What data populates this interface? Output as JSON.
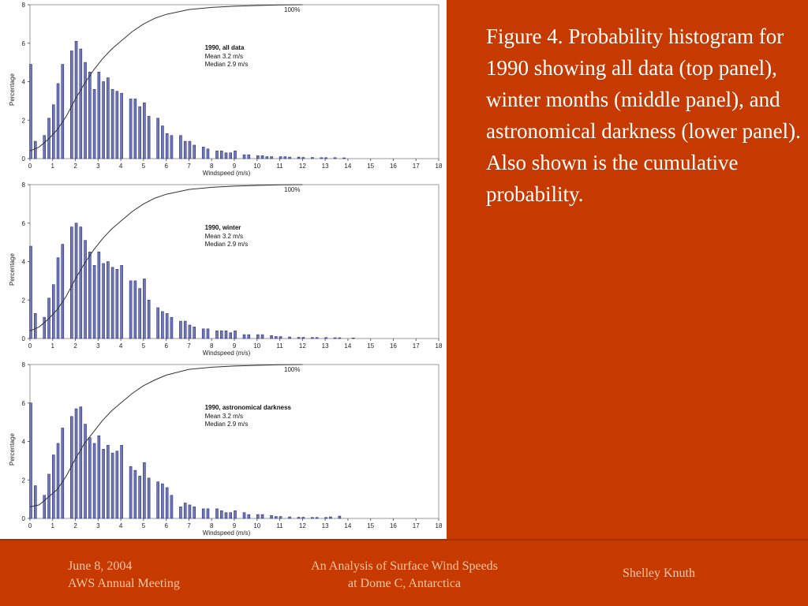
{
  "colors": {
    "background": "#c63a00",
    "bar_fill": "#6f78b8",
    "bar_stroke": "#2d2f7a",
    "line": "#333333",
    "text": "#ffffff",
    "footer_text": "#f6c7a8"
  },
  "caption": "Figure 4. Probability histogram for 1990 showing all data (top panel), winter months (middle panel), and astronomical darkness (lower panel). Also shown is the cumulative probability.",
  "footer": {
    "date": "June 8, 2004",
    "meeting": "AWS Annual Meeting",
    "title_line1": "An Analysis of Surface Wind Speeds",
    "title_line2": "at Dome C, Antarctica",
    "author": "Shelley Knuth"
  },
  "chart_data": [
    {
      "type": "bar",
      "title": "1990, all data",
      "annotations": [
        "Mean 3.2 m/s",
        "Median 2.9 m/s"
      ],
      "cumulative_label": "100%",
      "xlabel": "Windspeed (m/s)",
      "ylabel": "Percentage",
      "xlim": [
        0,
        18
      ],
      "ylim": [
        0,
        8
      ],
      "xticks": [
        0,
        1,
        2,
        3,
        4,
        5,
        6,
        7,
        8,
        9,
        10,
        11,
        12,
        13,
        14,
        15,
        16,
        17,
        18
      ],
      "yticks": [
        0,
        2,
        4,
        6,
        8
      ],
      "grid": false,
      "x": [
        0.0,
        0.2,
        0.6,
        0.8,
        1.0,
        1.2,
        1.4,
        1.8,
        2.0,
        2.2,
        2.4,
        2.6,
        2.8,
        3.0,
        3.2,
        3.4,
        3.6,
        3.8,
        4.0,
        4.4,
        4.6,
        4.8,
        5.0,
        5.2,
        5.6,
        5.8,
        6.0,
        6.2,
        6.6,
        6.8,
        7.0,
        7.2,
        7.6,
        7.8,
        8.2,
        8.4,
        8.6,
        8.8,
        9.0,
        9.4,
        9.6,
        10.0,
        10.2,
        10.4,
        10.6,
        11.0,
        11.2,
        11.4,
        11.8,
        12.0,
        12.4,
        12.8,
        13.0,
        13.4,
        13.8
      ],
      "values": [
        4.9,
        0.9,
        1.2,
        2.1,
        2.8,
        3.9,
        4.9,
        5.6,
        6.1,
        5.7,
        5.0,
        4.5,
        3.6,
        4.5,
        4.0,
        4.2,
        3.6,
        3.5,
        3.4,
        3.1,
        3.1,
        2.7,
        2.9,
        2.2,
        2.1,
        1.7,
        1.3,
        1.2,
        1.2,
        0.9,
        0.9,
        0.7,
        0.6,
        0.5,
        0.4,
        0.4,
        0.3,
        0.3,
        0.4,
        0.2,
        0.2,
        0.15,
        0.15,
        0.1,
        0.1,
        0.1,
        0.1,
        0.08,
        0.08,
        0.06,
        0.06,
        0.05,
        0.05,
        0.05,
        0.04
      ],
      "cumulative": [
        [
          0.0,
          0.4
        ],
        [
          0.4,
          0.6
        ],
        [
          0.8,
          1.0
        ],
        [
          1.2,
          1.5
        ],
        [
          1.6,
          2.2
        ],
        [
          2.0,
          3.1
        ],
        [
          2.4,
          3.9
        ],
        [
          2.8,
          4.6
        ],
        [
          3.2,
          5.2
        ],
        [
          3.6,
          5.7
        ],
        [
          4.0,
          6.1
        ],
        [
          4.5,
          6.6
        ],
        [
          5.0,
          7.0
        ],
        [
          5.5,
          7.3
        ],
        [
          6.0,
          7.5
        ],
        [
          7.0,
          7.75
        ],
        [
          8.0,
          7.86
        ],
        [
          9.0,
          7.92
        ],
        [
          10.0,
          7.96
        ],
        [
          11.0,
          7.99
        ],
        [
          12.0,
          8.0
        ]
      ]
    },
    {
      "type": "bar",
      "title": "1990, winter",
      "annotations": [
        "Mean 3.2 m/s",
        "Median 2.9 m/s"
      ],
      "cumulative_label": "100%",
      "xlabel": "Windspeed (m/s)",
      "ylabel": "Percentage",
      "xlim": [
        0,
        18
      ],
      "ylim": [
        0,
        8
      ],
      "xticks": [
        0,
        1,
        2,
        3,
        4,
        5,
        6,
        7,
        8,
        9,
        10,
        11,
        12,
        13,
        14,
        15,
        16,
        17,
        18
      ],
      "yticks": [
        0,
        2,
        4,
        6,
        8
      ],
      "grid": false,
      "x": [
        0.0,
        0.2,
        0.6,
        0.8,
        1.0,
        1.2,
        1.4,
        1.8,
        2.0,
        2.2,
        2.4,
        2.6,
        2.8,
        3.0,
        3.2,
        3.4,
        3.6,
        3.8,
        4.0,
        4.4,
        4.6,
        4.8,
        5.0,
        5.2,
        5.6,
        5.8,
        6.0,
        6.2,
        6.6,
        6.8,
        7.0,
        7.2,
        7.6,
        7.8,
        8.2,
        8.4,
        8.6,
        8.8,
        9.0,
        9.4,
        9.6,
        10.0,
        10.2,
        10.6,
        10.8,
        11.0,
        11.4,
        11.8,
        12.0,
        12.4,
        12.6,
        13.0,
        13.4,
        13.6,
        14.2
      ],
      "values": [
        4.8,
        1.3,
        1.1,
        2.1,
        2.8,
        4.2,
        4.9,
        5.8,
        6.0,
        5.8,
        5.1,
        4.5,
        3.8,
        4.5,
        3.9,
        4.0,
        3.7,
        3.6,
        3.8,
        3.0,
        3.0,
        2.6,
        3.1,
        2.0,
        1.6,
        1.4,
        1.3,
        1.1,
        0.9,
        0.9,
        0.7,
        0.6,
        0.5,
        0.5,
        0.4,
        0.4,
        0.4,
        0.3,
        0.4,
        0.2,
        0.2,
        0.2,
        0.2,
        0.15,
        0.1,
        0.1,
        0.08,
        0.06,
        0.06,
        0.05,
        0.05,
        0.05,
        0.04,
        0.04,
        0.03
      ],
      "cumulative": [
        [
          0.0,
          0.4
        ],
        [
          0.4,
          0.6
        ],
        [
          0.8,
          1.0
        ],
        [
          1.2,
          1.5
        ],
        [
          1.6,
          2.2
        ],
        [
          2.0,
          3.1
        ],
        [
          2.4,
          3.9
        ],
        [
          2.8,
          4.6
        ],
        [
          3.2,
          5.2
        ],
        [
          3.6,
          5.7
        ],
        [
          4.0,
          6.1
        ],
        [
          4.5,
          6.6
        ],
        [
          5.0,
          7.0
        ],
        [
          5.5,
          7.3
        ],
        [
          6.0,
          7.5
        ],
        [
          7.0,
          7.75
        ],
        [
          8.0,
          7.86
        ],
        [
          9.0,
          7.92
        ],
        [
          10.0,
          7.96
        ],
        [
          11.0,
          7.99
        ],
        [
          12.0,
          8.0
        ]
      ]
    },
    {
      "type": "bar",
      "title": "1990, astronomical darkness",
      "annotations": [
        "Mean 3.2 m/s",
        "Median 2.9 m/s"
      ],
      "cumulative_label": "100%",
      "xlabel": "Windspeed (m/s)",
      "ylabel": "Percentage",
      "xlim": [
        0,
        18
      ],
      "ylim": [
        0,
        8
      ],
      "xticks": [
        0,
        1,
        2,
        3,
        4,
        5,
        6,
        7,
        8,
        9,
        10,
        11,
        12,
        13,
        14,
        15,
        16,
        17,
        18
      ],
      "yticks": [
        0,
        2,
        4,
        6,
        8
      ],
      "grid": false,
      "x": [
        0.0,
        0.2,
        0.6,
        0.8,
        1.0,
        1.2,
        1.4,
        1.8,
        2.0,
        2.2,
        2.4,
        2.6,
        2.8,
        3.0,
        3.2,
        3.4,
        3.6,
        3.8,
        4.0,
        4.4,
        4.6,
        4.8,
        5.0,
        5.2,
        5.6,
        5.8,
        6.0,
        6.2,
        6.6,
        6.8,
        7.0,
        7.2,
        7.6,
        7.8,
        8.2,
        8.4,
        8.6,
        8.8,
        9.0,
        9.4,
        9.6,
        10.0,
        10.2,
        10.6,
        10.8,
        11.0,
        11.4,
        11.8,
        12.0,
        12.4,
        12.6,
        13.0,
        13.2,
        13.6
      ],
      "values": [
        6.0,
        1.7,
        1.2,
        2.3,
        3.3,
        3.9,
        4.7,
        5.3,
        5.7,
        5.8,
        4.9,
        4.2,
        3.9,
        4.3,
        3.6,
        3.8,
        3.4,
        3.5,
        3.8,
        2.7,
        2.5,
        2.2,
        2.9,
        2.1,
        1.9,
        1.8,
        1.6,
        1.2,
        0.6,
        0.8,
        0.7,
        0.6,
        0.5,
        0.5,
        0.5,
        0.4,
        0.3,
        0.3,
        0.4,
        0.3,
        0.2,
        0.2,
        0.2,
        0.15,
        0.1,
        0.1,
        0.08,
        0.06,
        0.06,
        0.05,
        0.05,
        0.05,
        0.08,
        0.12
      ],
      "cumulative": [
        [
          0.0,
          0.6
        ],
        [
          0.4,
          0.7
        ],
        [
          0.8,
          1.1
        ],
        [
          1.2,
          1.5
        ],
        [
          1.6,
          2.2
        ],
        [
          2.0,
          3.1
        ],
        [
          2.4,
          3.9
        ],
        [
          2.8,
          4.5
        ],
        [
          3.2,
          5.1
        ],
        [
          3.6,
          5.6
        ],
        [
          4.0,
          6.0
        ],
        [
          4.5,
          6.5
        ],
        [
          5.0,
          6.9
        ],
        [
          5.5,
          7.2
        ],
        [
          6.0,
          7.45
        ],
        [
          7.0,
          7.75
        ],
        [
          8.0,
          7.86
        ],
        [
          9.0,
          7.92
        ],
        [
          10.0,
          7.96
        ],
        [
          11.0,
          7.99
        ],
        [
          12.0,
          8.0
        ]
      ]
    }
  ]
}
